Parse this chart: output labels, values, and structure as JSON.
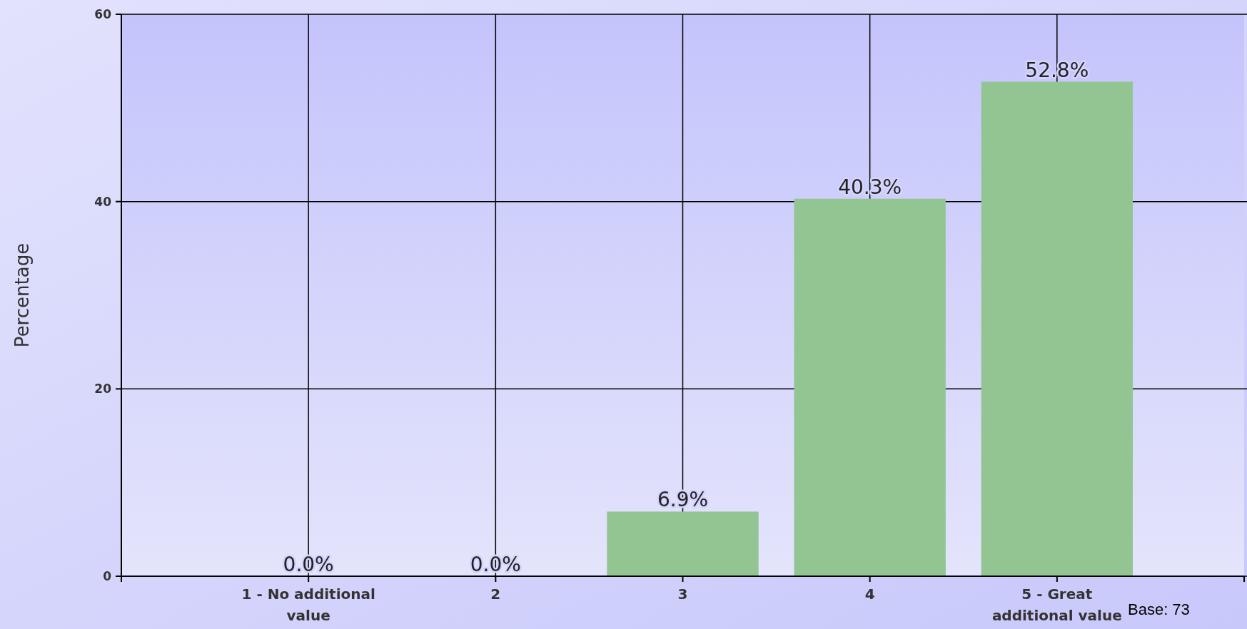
{
  "chart_data": {
    "type": "bar",
    "ylabel": "Percentage",
    "categories": [
      "1 - No additional value",
      "2",
      "3",
      "4",
      "5 - Great additional value"
    ],
    "values": [
      0.0,
      0.0,
      6.9,
      40.3,
      52.8
    ],
    "value_labels": [
      "0.0%",
      "0.0%",
      "6.9%",
      "40.3%",
      "52.8%"
    ],
    "color": "#93c593",
    "ylim": [
      0,
      60
    ],
    "yticks": [
      0,
      20,
      40,
      60
    ],
    "grid": true,
    "annotations": [
      "Base: 73"
    ]
  }
}
